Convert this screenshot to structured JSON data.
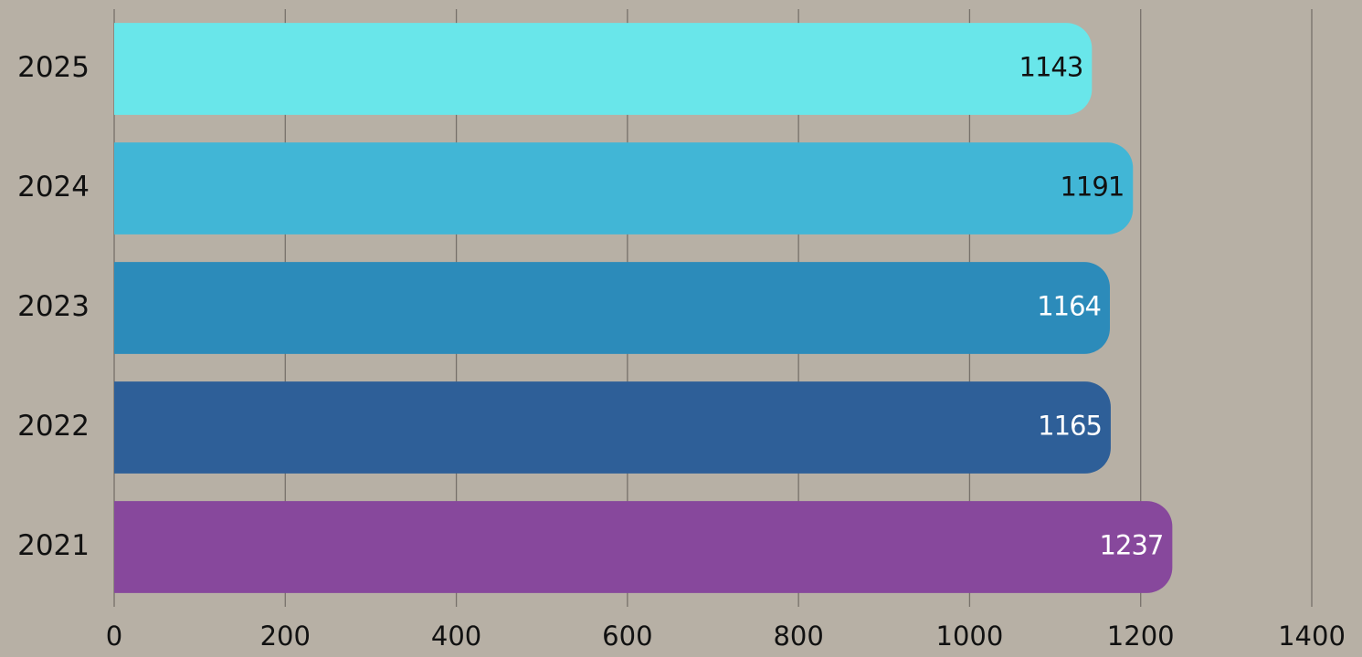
{
  "chart_data": {
    "type": "bar",
    "orientation": "horizontal",
    "categories": [
      "2025",
      "2024",
      "2023",
      "2022",
      "2021"
    ],
    "values": [
      1143,
      1191,
      1164,
      1165,
      1237
    ],
    "value_labels": [
      "1143",
      "1191",
      "1164",
      "1165",
      "1237"
    ],
    "bar_colors": [
      "#69e6ea",
      "#41b6d6",
      "#2c8bba",
      "#2e5f98",
      "#87489c"
    ],
    "value_label_colors": [
      "#111111",
      "#111111",
      "#ffffff",
      "#ffffff",
      "#ffffff"
    ],
    "xticks": [
      0,
      200,
      400,
      600,
      800,
      1000,
      1200,
      1400
    ],
    "xtick_labels": [
      "0",
      "200",
      "400",
      "600",
      "800",
      "1000",
      "1200",
      "1400"
    ],
    "xlim": [
      0,
      1400
    ],
    "grid": "vertical",
    "legend": "none",
    "background": "#b7b0a5",
    "title": "",
    "xlabel": "",
    "ylabel": ""
  }
}
